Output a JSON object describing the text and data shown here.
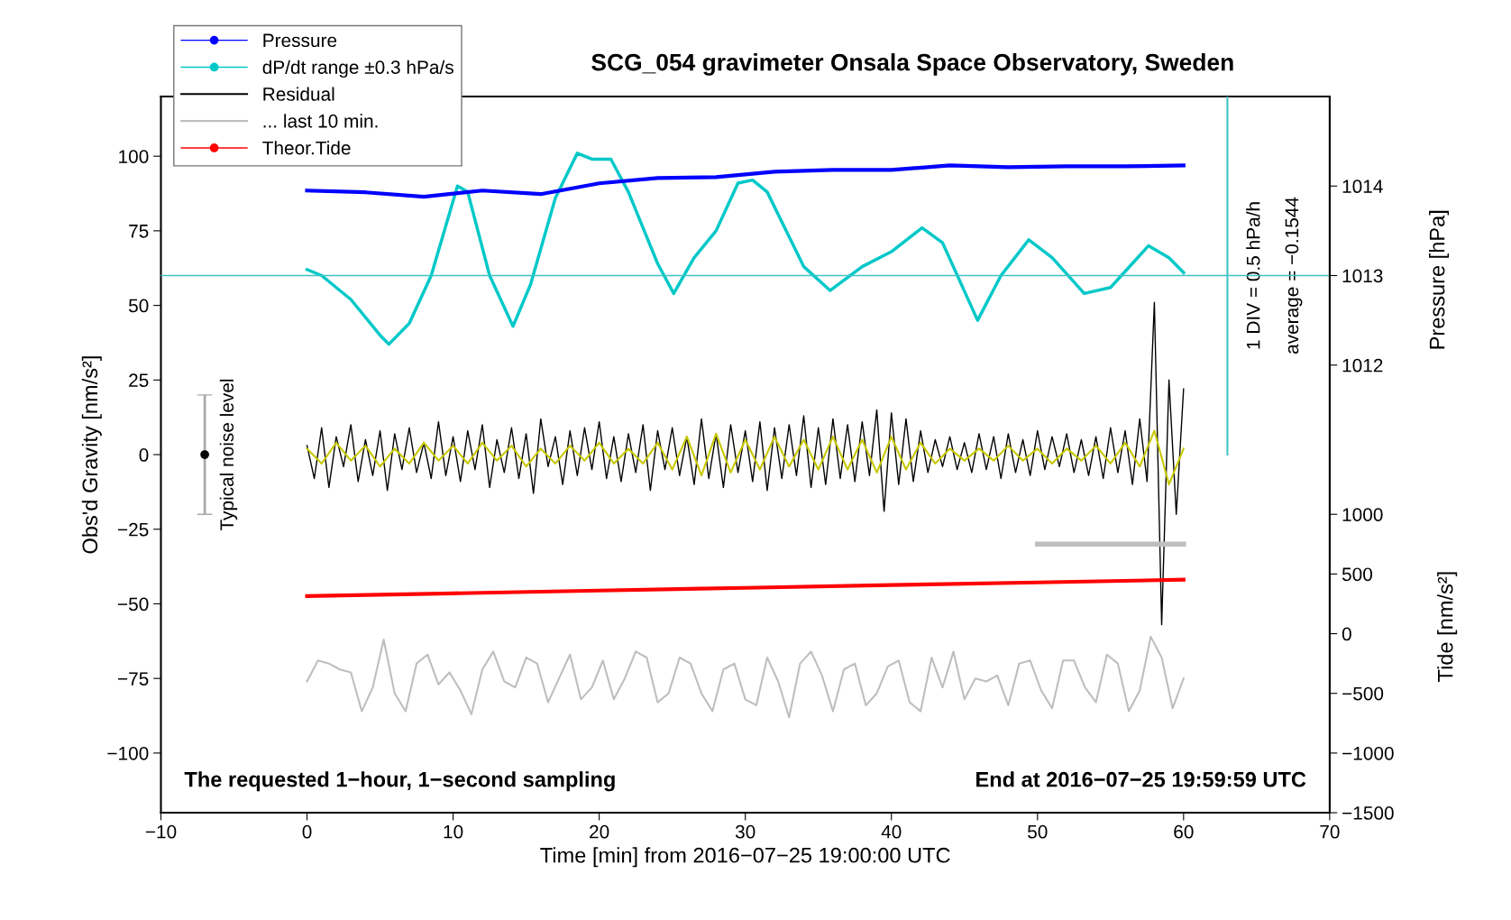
{
  "chart_data": {
    "type": "line",
    "title": "SCG_054 gravimeter Onsala Space Observatory, Sweden",
    "xlabel": "Time [min] from 2016−07−25 19:00:00 UTC",
    "ylabel": "Obs'd Gravity [nm/s²]",
    "y2label": "Pressure [hPa]",
    "y3label": "Tide [nm/s²]",
    "xlim": [
      -10,
      70
    ],
    "xticks": [
      -10,
      0,
      10,
      20,
      30,
      40,
      50,
      60,
      70
    ],
    "ylim": [
      -120,
      120
    ],
    "yticks": [
      -100,
      -75,
      -50,
      -25,
      0,
      25,
      50,
      75,
      100
    ],
    "y2lim": [
      1007,
      1015
    ],
    "y2ticks": [
      1012,
      1013,
      1014
    ],
    "y3lim": [
      -1500,
      4500
    ],
    "y3ticks": [
      -1500,
      -1000,
      -500,
      0,
      500,
      1000
    ],
    "legend": "top left",
    "ref_lines": [
      {
        "axis": "y2",
        "value": 1013,
        "color": "#3fc4c4"
      }
    ],
    "annotations": [
      "The requested 1−hour, 1−second sampling",
      "End at 2016−07−25 19:59:59 UTC",
      "1 DIV = 0.5 hPa/h",
      "average = −0.1544",
      {
        "text": "Typical noise level",
        "x": -7,
        "y": 0
      }
    ],
    "series": [
      {
        "name": "Pressure",
        "color": "#0000ff",
        "axis": "y2",
        "x": [
          0,
          4,
          8,
          12,
          16,
          20,
          24,
          28,
          32,
          36,
          40,
          44,
          48,
          52,
          56,
          60
        ],
        "values": [
          1013.95,
          1013.93,
          1013.88,
          1013.95,
          1013.91,
          1014.03,
          1014.09,
          1014.1,
          1014.16,
          1014.18,
          1014.18,
          1014.23,
          1014.21,
          1014.22,
          1014.22,
          1014.23
        ]
      },
      {
        "name": "dP/dt range ±0.3 hPa/s",
        "color": "#00c8c8",
        "x": [
          0,
          1,
          3,
          5,
          5.6,
          7,
          8.5,
          10.3,
          11,
          12.5,
          14.1,
          15.3,
          17,
          18.5,
          19.5,
          20.8,
          22,
          24,
          25.1,
          26.5,
          28,
          29.5,
          30.5,
          31.5,
          34,
          35.8,
          38,
          40,
          42.1,
          43.5,
          45.9,
          47.5,
          49.4,
          51,
          53.2,
          55,
          57.6,
          59,
          60
        ],
        "values": [
          62,
          60,
          52,
          40,
          37,
          44,
          60,
          90,
          88,
          60,
          43,
          57,
          86,
          101,
          99,
          99,
          88,
          64,
          54,
          66,
          75,
          91,
          92,
          88,
          63,
          55,
          63,
          68,
          76,
          71,
          45,
          60,
          72,
          66,
          54,
          56,
          70,
          66,
          61
        ]
      },
      {
        "name": "Residual",
        "color": "#000000",
        "x": [
          0,
          0.5,
          1,
          1.5,
          2,
          2.5,
          3,
          3.5,
          4,
          4.5,
          5,
          5.5,
          6,
          6.5,
          7,
          7.5,
          8,
          8.5,
          9,
          9.5,
          10,
          10.5,
          11,
          11.5,
          12,
          12.5,
          13,
          13.5,
          14,
          14.5,
          15,
          15.5,
          16,
          16.5,
          17,
          17.5,
          18,
          18.5,
          19,
          19.5,
          20,
          20.5,
          21,
          21.5,
          22,
          22.5,
          23,
          23.5,
          24,
          24.5,
          25,
          25.5,
          26,
          26.5,
          27,
          27.5,
          28,
          28.5,
          29,
          29.5,
          30,
          30.5,
          31,
          31.5,
          32,
          32.5,
          33,
          33.5,
          34,
          34.5,
          35,
          35.5,
          36,
          36.5,
          37,
          37.5,
          38,
          38.5,
          39,
          39.5,
          40,
          40.5,
          41,
          41.5,
          42,
          42.5,
          43,
          43.5,
          44,
          44.5,
          45,
          45.5,
          46,
          46.5,
          47,
          47.5,
          48,
          48.5,
          49,
          49.5,
          50,
          50.5,
          51,
          51.5,
          52,
          52.5,
          53,
          53.5,
          54,
          54.5,
          55,
          55.5,
          56,
          56.5,
          57,
          57.5,
          58,
          58.5,
          59,
          59.5,
          60
        ],
        "values": [
          3,
          -8,
          9,
          -11,
          6,
          -4,
          10,
          -9,
          5,
          -7,
          8,
          -12,
          7,
          -5,
          9,
          -6,
          4,
          -8,
          11,
          -7,
          6,
          -9,
          8,
          -5,
          10,
          -11,
          5,
          -6,
          9,
          -8,
          7,
          -13,
          12,
          -4,
          6,
          -10,
          8,
          -7,
          9,
          -5,
          11,
          -8,
          6,
          -9,
          7,
          -6,
          10,
          -12,
          8,
          -5,
          9,
          -7,
          6,
          -10,
          12,
          -8,
          7,
          -11,
          10,
          -6,
          8,
          -9,
          11,
          -12,
          9,
          -8,
          10,
          -7,
          13,
          -11,
          9,
          -10,
          12,
          -8,
          10,
          -9,
          11,
          -7,
          15,
          -19,
          14,
          -10,
          12,
          -9,
          8,
          -6,
          5,
          -4,
          6,
          -5,
          4,
          -6,
          7,
          -5,
          6,
          -8,
          7,
          -6,
          5,
          -7,
          8,
          -5,
          6,
          -4,
          7,
          -6,
          5,
          -7,
          6,
          -8,
          9,
          -6,
          8,
          -10,
          12,
          -9,
          51,
          -57,
          25,
          -20,
          22
        ]
      },
      {
        "name": "... last 10 min.",
        "color": "#bebebe",
        "x": [
          0,
          0.75,
          1.5,
          2.25,
          3,
          3.75,
          4.5,
          5.25,
          6,
          6.75,
          7.5,
          8.25,
          9,
          9.75,
          10.5,
          11.25,
          12,
          12.75,
          13.5,
          14.25,
          15,
          15.75,
          16.5,
          17.25,
          18,
          18.75,
          19.5,
          20.25,
          21,
          21.75,
          22.5,
          23.25,
          24,
          24.75,
          25.5,
          26.25,
          27,
          27.75,
          28.5,
          29.25,
          30,
          30.75,
          31.5,
          32.25,
          33,
          33.75,
          34.5,
          35.25,
          36,
          36.75,
          37.5,
          38.25,
          39,
          39.75,
          40.5,
          41.25,
          42,
          42.75,
          43.5,
          44.25,
          45,
          45.75,
          46.5,
          47.25,
          48,
          48.75,
          49.5,
          50.25,
          51,
          51.75,
          52.5,
          53.25,
          54,
          54.75,
          55.5,
          56.25,
          57,
          57.75,
          58.5,
          59.25,
          60
        ],
        "values": [
          -76,
          -69,
          -70,
          -72,
          -73,
          -86,
          -78,
          -62,
          -80,
          -86,
          -70,
          -67,
          -77,
          -73,
          -79,
          -87,
          -72,
          -66,
          -76,
          -78,
          -68,
          -70,
          -83,
          -75,
          -67,
          -82,
          -78,
          -69,
          -82,
          -75,
          -66,
          -68,
          -83,
          -80,
          -68,
          -70,
          -80,
          -86,
          -72,
          -70,
          -82,
          -84,
          -68,
          -76,
          -88,
          -70,
          -66,
          -74,
          -86,
          -72,
          -70,
          -84,
          -80,
          -71,
          -69,
          -83,
          -86,
          -68,
          -78,
          -66,
          -82,
          -75,
          -76,
          -74,
          -84,
          -70,
          -69,
          -79,
          -85,
          -69,
          -69,
          -78,
          -83,
          -67,
          -70,
          -86,
          -79,
          -61,
          -68,
          -85,
          -75
        ]
      },
      {
        "name": "Theor.Tide",
        "color": "#ff0000",
        "axis": "y3",
        "x": [
          0,
          10,
          20,
          30,
          40,
          50,
          60
        ],
        "values": [
          315,
          338,
          361,
          384,
          407,
          429,
          452
        ]
      },
      {
        "color": "#c8c800",
        "x": [
          0,
          1,
          2,
          3,
          4,
          5,
          6,
          7,
          8,
          9,
          10,
          11,
          12,
          13,
          14,
          15,
          16,
          17,
          18,
          19,
          20,
          21,
          22,
          23,
          24,
          25,
          26,
          27,
          28,
          29,
          30,
          31,
          32,
          33,
          34,
          35,
          36,
          37,
          38,
          39,
          40,
          41,
          42,
          43,
          44,
          45,
          46,
          47,
          48,
          49,
          50,
          51,
          52,
          53,
          54,
          55,
          56,
          57,
          58,
          59,
          60
        ],
        "values": [
          2,
          -3,
          4,
          -2,
          3,
          -4,
          2,
          -3,
          4,
          -2,
          3,
          -3,
          4,
          -2,
          3,
          -4,
          2,
          -3,
          3,
          -2,
          4,
          -3,
          2,
          -3,
          4,
          -5,
          6,
          -7,
          7,
          -6,
          5,
          -5,
          6,
          -4,
          5,
          -5,
          6,
          -5,
          5,
          -6,
          6,
          -5,
          4,
          -3,
          2,
          -2,
          2,
          -2,
          3,
          -2,
          2,
          -3,
          2,
          -2,
          3,
          -3,
          4,
          -4,
          8,
          -10,
          2
        ]
      },
      {
        "color": "#bebebe",
        "x": [
          50,
          60
        ],
        "values": [
          -30,
          -30
        ]
      },
      {
        "type": "scatter",
        "color": "#000000",
        "x": [
          -7
        ],
        "values": [
          0
        ],
        "errors": [
          20
        ]
      },
      {
        "color": "#3fc4c4",
        "x": [
          63,
          63
        ],
        "values": [
          0,
          120
        ]
      }
    ]
  }
}
